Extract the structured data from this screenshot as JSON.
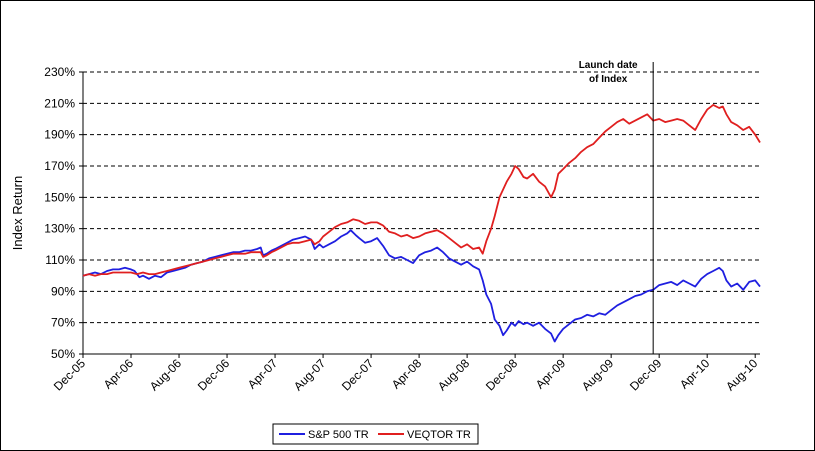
{
  "chart_data": {
    "type": "line",
    "title": "",
    "xlabel": "",
    "ylabel": "Index Return",
    "ylim": [
      50,
      230
    ],
    "y_ticks": [
      "50%",
      "70%",
      "90%",
      "110%",
      "130%",
      "150%",
      "170%",
      "190%",
      "210%",
      "230%"
    ],
    "y_tick_values": [
      50,
      70,
      90,
      110,
      130,
      150,
      170,
      190,
      210,
      230
    ],
    "x_tick_labels": [
      "Dec-05",
      "Apr-06",
      "Aug-06",
      "Dec-06",
      "Apr-07",
      "Aug-07",
      "Dec-07",
      "Apr-08",
      "Aug-08",
      "Dec-08",
      "Apr-09",
      "Aug-09",
      "Dec-09",
      "Apr-10",
      "Aug-10"
    ],
    "x_tick_index": [
      0,
      4,
      8,
      12,
      16,
      20,
      24,
      28,
      32,
      36,
      40,
      44,
      48,
      52,
      56
    ],
    "x_range_months": [
      0,
      56.4
    ],
    "grid": "horizontal dashed",
    "legend_position": "bottom",
    "annotation": {
      "lines": [
        "Launch date",
        "of Index"
      ],
      "x_month": 47.5
    },
    "series": [
      {
        "name": "S&P 500 TR",
        "color": "#1f1fe0",
        "points": [
          [
            0,
            100
          ],
          [
            0.5,
            101
          ],
          [
            1,
            102
          ],
          [
            1.5,
            101
          ],
          [
            2,
            103
          ],
          [
            2.5,
            104
          ],
          [
            3,
            104
          ],
          [
            3.5,
            105
          ],
          [
            4,
            104
          ],
          [
            4.3,
            103
          ],
          [
            4.7,
            99
          ],
          [
            5,
            100
          ],
          [
            5.5,
            98
          ],
          [
            6,
            100
          ],
          [
            6.5,
            99
          ],
          [
            7,
            102
          ],
          [
            7.5,
            103
          ],
          [
            8,
            104
          ],
          [
            8.5,
            105
          ],
          [
            9,
            107
          ],
          [
            9.5,
            108
          ],
          [
            10,
            109
          ],
          [
            10.5,
            111
          ],
          [
            11,
            112
          ],
          [
            11.5,
            113
          ],
          [
            12,
            114
          ],
          [
            12.5,
            115
          ],
          [
            13,
            115
          ],
          [
            13.5,
            116
          ],
          [
            14,
            116
          ],
          [
            14.5,
            117
          ],
          [
            14.8,
            118
          ],
          [
            15,
            113
          ],
          [
            15.3,
            114
          ],
          [
            15.7,
            116
          ],
          [
            16,
            117
          ],
          [
            16.5,
            119
          ],
          [
            17,
            121
          ],
          [
            17.5,
            123
          ],
          [
            18,
            124
          ],
          [
            18.5,
            125
          ],
          [
            19,
            123
          ],
          [
            19.3,
            117
          ],
          [
            19.7,
            120
          ],
          [
            20,
            118
          ],
          [
            20.5,
            120
          ],
          [
            21,
            122
          ],
          [
            21.5,
            125
          ],
          [
            22,
            127
          ],
          [
            22.3,
            129
          ],
          [
            22.7,
            126
          ],
          [
            23,
            124
          ],
          [
            23.5,
            121
          ],
          [
            24,
            122
          ],
          [
            24.5,
            124
          ],
          [
            25,
            119
          ],
          [
            25.5,
            113
          ],
          [
            26,
            111
          ],
          [
            26.5,
            112
          ],
          [
            27,
            110
          ],
          [
            27.5,
            108
          ],
          [
            28,
            113
          ],
          [
            28.5,
            115
          ],
          [
            29,
            116
          ],
          [
            29.5,
            118
          ],
          [
            30,
            115
          ],
          [
            30.5,
            111
          ],
          [
            31,
            109
          ],
          [
            31.5,
            107
          ],
          [
            32,
            109
          ],
          [
            32.5,
            106
          ],
          [
            33,
            104
          ],
          [
            33.3,
            97
          ],
          [
            33.6,
            88
          ],
          [
            34,
            82
          ],
          [
            34.3,
            72
          ],
          [
            34.7,
            68
          ],
          [
            35,
            62
          ],
          [
            35.3,
            65
          ],
          [
            35.7,
            70
          ],
          [
            36,
            68
          ],
          [
            36.3,
            71
          ],
          [
            36.7,
            69
          ],
          [
            37,
            70
          ],
          [
            37.5,
            68
          ],
          [
            38,
            70
          ],
          [
            38.5,
            66
          ],
          [
            39,
            63
          ],
          [
            39.3,
            58
          ],
          [
            39.6,
            62
          ],
          [
            40,
            66
          ],
          [
            40.5,
            69
          ],
          [
            41,
            72
          ],
          [
            41.5,
            73
          ],
          [
            42,
            75
          ],
          [
            42.5,
            74
          ],
          [
            43,
            76
          ],
          [
            43.5,
            75
          ],
          [
            44,
            78
          ],
          [
            44.5,
            81
          ],
          [
            45,
            83
          ],
          [
            45.5,
            85
          ],
          [
            46,
            87
          ],
          [
            46.5,
            88
          ],
          [
            47,
            90
          ],
          [
            47.5,
            91
          ],
          [
            48,
            94
          ],
          [
            48.5,
            95
          ],
          [
            49,
            96
          ],
          [
            49.5,
            94
          ],
          [
            50,
            97
          ],
          [
            50.5,
            95
          ],
          [
            51,
            93
          ],
          [
            51.5,
            98
          ],
          [
            52,
            101
          ],
          [
            52.5,
            103
          ],
          [
            53,
            105
          ],
          [
            53.3,
            103
          ],
          [
            53.6,
            97
          ],
          [
            54,
            93
          ],
          [
            54.5,
            95
          ],
          [
            55,
            91
          ],
          [
            55.5,
            96
          ],
          [
            56,
            97
          ],
          [
            56.4,
            93
          ]
        ]
      },
      {
        "name": "VEQTOR TR",
        "color": "#e01f1f",
        "points": [
          [
            0,
            100
          ],
          [
            0.5,
            101
          ],
          [
            1,
            100
          ],
          [
            1.5,
            101
          ],
          [
            2,
            101
          ],
          [
            2.5,
            102
          ],
          [
            3,
            102
          ],
          [
            3.5,
            102
          ],
          [
            4,
            102
          ],
          [
            4.5,
            101
          ],
          [
            5,
            102
          ],
          [
            5.5,
            101
          ],
          [
            6,
            101
          ],
          [
            6.5,
            102
          ],
          [
            7,
            103
          ],
          [
            7.5,
            104
          ],
          [
            8,
            105
          ],
          [
            8.5,
            106
          ],
          [
            9,
            107
          ],
          [
            9.5,
            108
          ],
          [
            10,
            109
          ],
          [
            10.5,
            110
          ],
          [
            11,
            111
          ],
          [
            11.5,
            112
          ],
          [
            12,
            113
          ],
          [
            12.5,
            114
          ],
          [
            13,
            114
          ],
          [
            13.5,
            114
          ],
          [
            14,
            115
          ],
          [
            14.5,
            115
          ],
          [
            14.8,
            115
          ],
          [
            15,
            112
          ],
          [
            15.3,
            113
          ],
          [
            15.7,
            115
          ],
          [
            16,
            116
          ],
          [
            16.5,
            118
          ],
          [
            17,
            120
          ],
          [
            17.5,
            121
          ],
          [
            18,
            121
          ],
          [
            18.5,
            122
          ],
          [
            19,
            123
          ],
          [
            19.3,
            120
          ],
          [
            19.7,
            122
          ],
          [
            20,
            125
          ],
          [
            20.5,
            128
          ],
          [
            21,
            131
          ],
          [
            21.5,
            133
          ],
          [
            22,
            134
          ],
          [
            22.5,
            136
          ],
          [
            23,
            135
          ],
          [
            23.5,
            133
          ],
          [
            24,
            134
          ],
          [
            24.5,
            134
          ],
          [
            25,
            132
          ],
          [
            25.5,
            128
          ],
          [
            26,
            127
          ],
          [
            26.5,
            125
          ],
          [
            27,
            126
          ],
          [
            27.5,
            124
          ],
          [
            28,
            125
          ],
          [
            28.5,
            127
          ],
          [
            29,
            128
          ],
          [
            29.5,
            129
          ],
          [
            30,
            127
          ],
          [
            30.5,
            124
          ],
          [
            31,
            121
          ],
          [
            31.5,
            118
          ],
          [
            32,
            120
          ],
          [
            32.5,
            117
          ],
          [
            33,
            118
          ],
          [
            33.3,
            114
          ],
          [
            33.6,
            122
          ],
          [
            34,
            130
          ],
          [
            34.3,
            138
          ],
          [
            34.7,
            150
          ],
          [
            35,
            155
          ],
          [
            35.3,
            160
          ],
          [
            35.7,
            165
          ],
          [
            36,
            170
          ],
          [
            36.3,
            168
          ],
          [
            36.7,
            163
          ],
          [
            37,
            162
          ],
          [
            37.5,
            165
          ],
          [
            38,
            160
          ],
          [
            38.5,
            157
          ],
          [
            39,
            150
          ],
          [
            39.3,
            155
          ],
          [
            39.6,
            165
          ],
          [
            40,
            168
          ],
          [
            40.5,
            172
          ],
          [
            41,
            175
          ],
          [
            41.5,
            179
          ],
          [
            42,
            182
          ],
          [
            42.5,
            184
          ],
          [
            43,
            188
          ],
          [
            43.5,
            192
          ],
          [
            44,
            195
          ],
          [
            44.5,
            198
          ],
          [
            45,
            200
          ],
          [
            45.5,
            197
          ],
          [
            46,
            199
          ],
          [
            46.5,
            201
          ],
          [
            47,
            203
          ],
          [
            47.5,
            199
          ],
          [
            48,
            200
          ],
          [
            48.5,
            198
          ],
          [
            49,
            199
          ],
          [
            49.5,
            200
          ],
          [
            50,
            199
          ],
          [
            50.5,
            196
          ],
          [
            51,
            193
          ],
          [
            51.5,
            200
          ],
          [
            52,
            206
          ],
          [
            52.5,
            209
          ],
          [
            53,
            207
          ],
          [
            53.3,
            208
          ],
          [
            53.6,
            203
          ],
          [
            54,
            198
          ],
          [
            54.5,
            196
          ],
          [
            55,
            193
          ],
          [
            55.5,
            195
          ],
          [
            56,
            190
          ],
          [
            56.4,
            185
          ]
        ]
      }
    ]
  }
}
